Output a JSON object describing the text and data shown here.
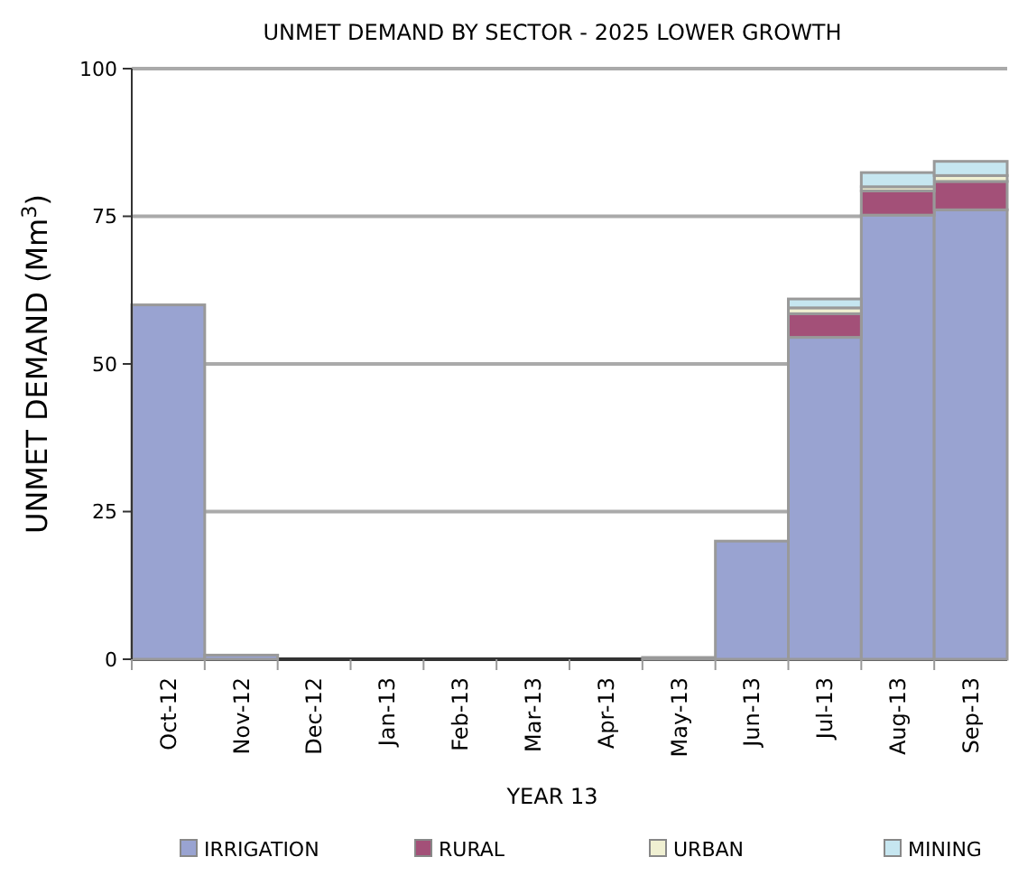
{
  "chart_data": {
    "type": "bar",
    "title": "UNMET DEMAND BY SECTOR - 2025 LOWER GROWTH",
    "xlabel": "YEAR 13",
    "ylabel": "UNMET DEMAND (Mm$^{3}$)",
    "categories": [
      "Oct-12",
      "Nov-12",
      "Dec-12",
      "Jan-13",
      "Feb-13",
      "Mar-13",
      "Apr-13",
      "May-13",
      "Jun-13",
      "Jul-13",
      "Aug-13",
      "Sep-13"
    ],
    "stacked": true,
    "ylim": [
      0,
      100
    ],
    "yticks": [
      0,
      25,
      50,
      75,
      100
    ],
    "grid": "y",
    "legend": "bottom",
    "series": [
      {
        "name": "IRRIGATION",
        "color": "#99a3d1",
        "values": [
          60,
          0.7,
          0,
          0,
          0,
          0,
          0,
          0.3,
          20,
          54.5,
          75.2,
          76.1
        ]
      },
      {
        "name": "RURAL",
        "color": "#a35078",
        "values": [
          0,
          0,
          0,
          0,
          0,
          0,
          0,
          0,
          0,
          4,
          4.1,
          4.8
        ]
      },
      {
        "name": "URBAN",
        "color": "#f0f0d2",
        "values": [
          0,
          0,
          0,
          0,
          0,
          0,
          0,
          0,
          0,
          1,
          0.7,
          1
        ]
      },
      {
        "name": "MINING",
        "color": "#c6e6f0",
        "values": [
          0,
          0,
          0,
          0,
          0,
          0,
          0,
          0,
          0,
          1.5,
          2.4,
          2.4
        ]
      }
    ]
  }
}
